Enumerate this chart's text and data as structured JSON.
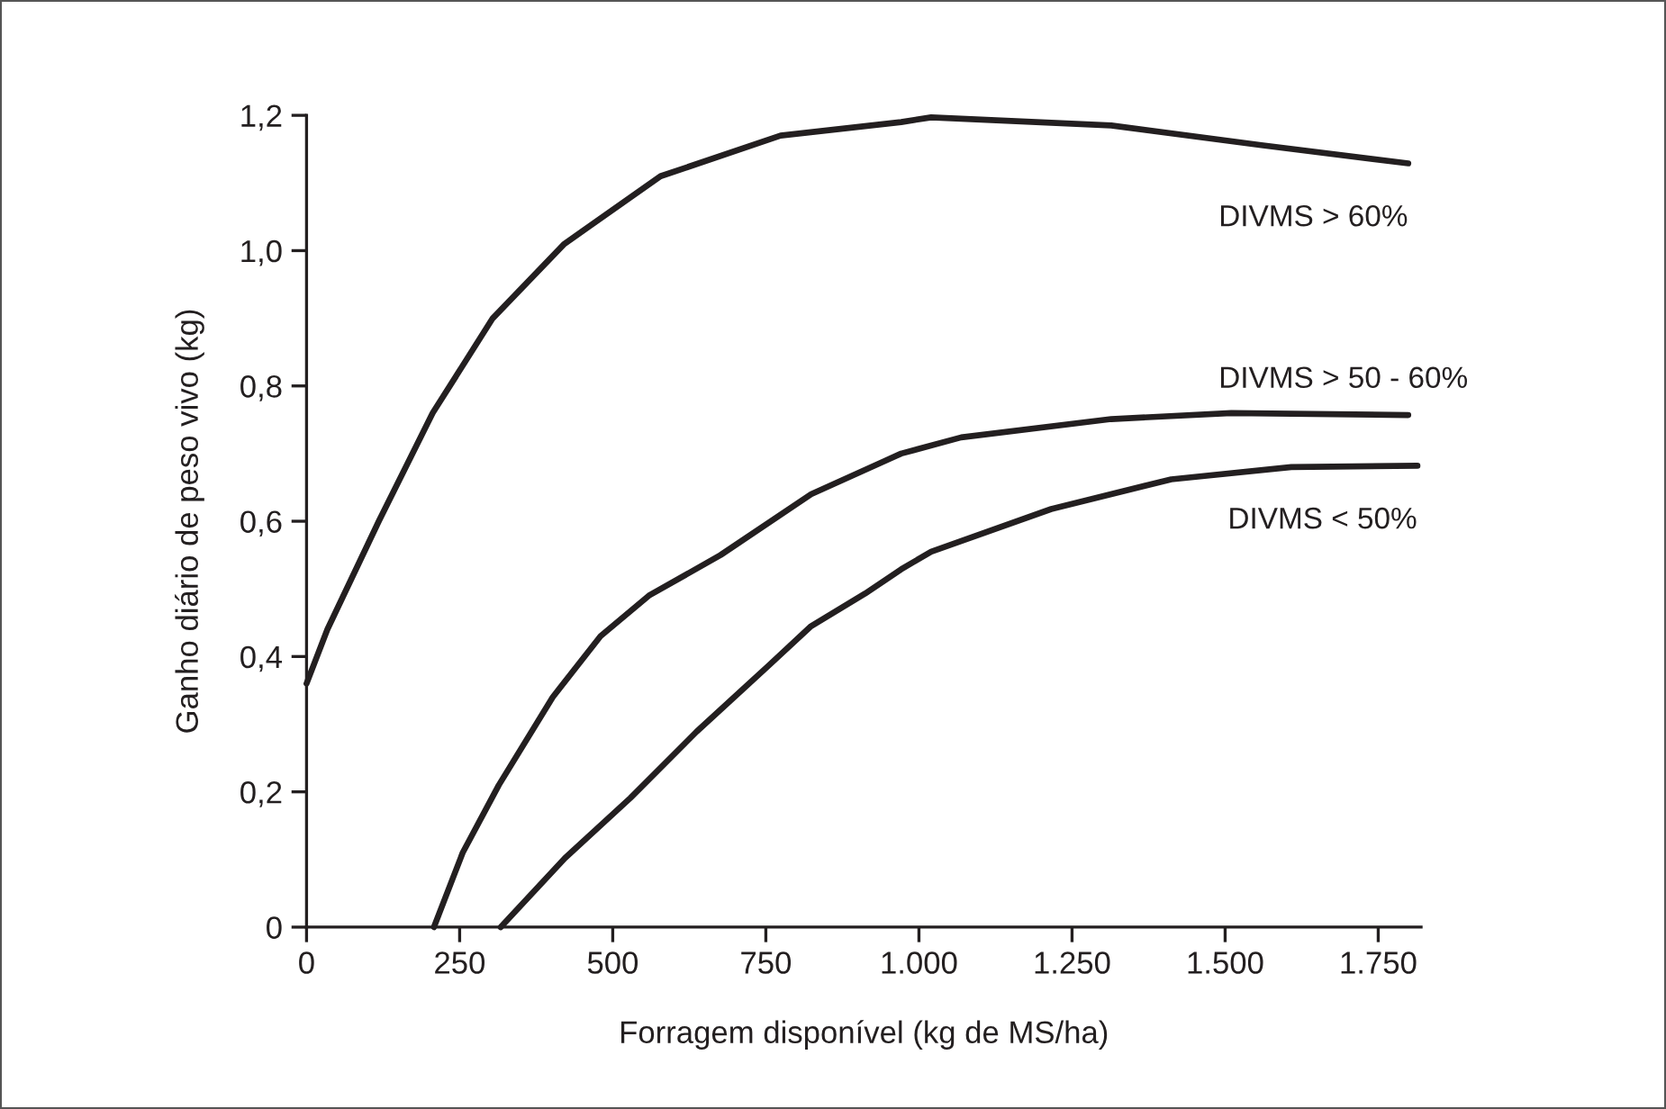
{
  "chart_data": {
    "type": "line",
    "xlabel": "Forragem disponível (kg de MS/ha)",
    "ylabel": "Ganho diário de peso vivo (kg)",
    "xlim": [
      0,
      1820
    ],
    "ylim": [
      0,
      1.2
    ],
    "xticks": [
      0,
      250,
      500,
      750,
      {
        "value": 1000,
        "label": "1.000"
      },
      {
        "value": 1250,
        "label": "1.250"
      },
      {
        "value": 1500,
        "label": "1.500"
      },
      {
        "value": 1750,
        "label": "1.750"
      }
    ],
    "yticks": [
      {
        "value": 0,
        "label": "0"
      },
      {
        "value": 0.2,
        "label": "0,2"
      },
      {
        "value": 0.4,
        "label": "0,4"
      },
      {
        "value": 0.6,
        "label": "0,6"
      },
      {
        "value": 0.8,
        "label": "0,8"
      },
      {
        "value": 1.0,
        "label": "1,0"
      },
      {
        "value": 1.2,
        "label": "1,2"
      }
    ],
    "grid": false,
    "legend": false,
    "marker": "none",
    "line_style": "solid",
    "series": [
      {
        "name": "DIVMS > 60%",
        "color": "#231f20",
        "x": [
          0,
          34,
          118,
          206,
          304,
          421,
          578,
          774,
          971,
          1020,
          1314,
          1559,
          1799
        ],
        "values": [
          0.36,
          0.44,
          0.6,
          0.76,
          0.9,
          1.01,
          1.11,
          1.17,
          1.19,
          1.197,
          1.185,
          1.156,
          1.129
        ]
      },
      {
        "name": "DIVMS > 50 - 60%",
        "color": "#231f20",
        "x": [
          208,
          255,
          314,
          402,
          480,
          559,
          676,
          824,
          971,
          1069,
          1314,
          1510,
          1799
        ],
        "values": [
          0,
          0.11,
          0.21,
          0.34,
          0.43,
          0.49,
          0.55,
          0.64,
          0.7,
          0.724,
          0.751,
          0.76,
          0.757
        ]
      },
      {
        "name": "DIVMS < 50%",
        "color": "#231f20",
        "x": [
          317,
          422,
          529,
          637,
          755,
          824,
          912,
          971,
          1020,
          1216,
          1412,
          1608,
          1814
        ],
        "values": [
          0,
          0.102,
          0.191,
          0.289,
          0.387,
          0.445,
          0.493,
          0.529,
          0.555,
          0.618,
          0.662,
          0.68,
          0.682
        ]
      }
    ]
  }
}
